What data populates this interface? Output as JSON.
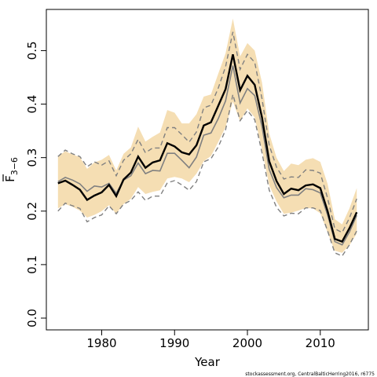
{
  "chart_data": {
    "type": "line",
    "xlabel": "Year",
    "ylabel_main": "F",
    "ylabel_sub": "3−6",
    "x_ticks": [
      1980,
      1990,
      2000,
      2010
    ],
    "y_ticks": [
      "0.0",
      "0.1",
      "0.2",
      "0.3",
      "0.4",
      "0.5"
    ],
    "y_tick_values": [
      0.0,
      0.1,
      0.2,
      0.3,
      0.4,
      0.5
    ],
    "xlim": [
      1972.4,
      2016.6
    ],
    "ylim": [
      -0.022,
      0.577
    ],
    "grid": false,
    "footer": "stockassessment.org, CentralBalticHerring2016, r6775",
    "colors": {
      "band": "#f5deb3",
      "estimate": "#000000",
      "comparison": "#808080"
    },
    "x": [
      1974,
      1975,
      1976,
      1977,
      1978,
      1979,
      1980,
      1981,
      1982,
      1983,
      1984,
      1985,
      1986,
      1987,
      1988,
      1989,
      1990,
      1991,
      1992,
      1993,
      1994,
      1995,
      1996,
      1997,
      1998,
      1999,
      2000,
      2001,
      2002,
      2003,
      2004,
      2005,
      2006,
      2007,
      2008,
      2009,
      2010,
      2011,
      2012,
      2013,
      2014,
      2015
    ],
    "series": [
      {
        "role": "band",
        "lower": [
          0.205,
          0.213,
          0.208,
          0.201,
          0.188,
          0.193,
          0.2,
          0.211,
          0.195,
          0.213,
          0.223,
          0.245,
          0.232,
          0.236,
          0.239,
          0.261,
          0.264,
          0.261,
          0.254,
          0.27,
          0.293,
          0.303,
          0.329,
          0.357,
          0.405,
          0.368,
          0.392,
          0.375,
          0.315,
          0.248,
          0.218,
          0.195,
          0.197,
          0.201,
          0.206,
          0.205,
          0.196,
          0.16,
          0.126,
          0.122,
          0.136,
          0.158
        ],
        "upper": [
          0.302,
          0.312,
          0.306,
          0.301,
          0.279,
          0.291,
          0.296,
          0.305,
          0.276,
          0.307,
          0.319,
          0.358,
          0.33,
          0.339,
          0.347,
          0.389,
          0.384,
          0.364,
          0.364,
          0.381,
          0.414,
          0.418,
          0.457,
          0.495,
          0.56,
          0.489,
          0.514,
          0.5,
          0.44,
          0.345,
          0.3,
          0.275,
          0.289,
          0.286,
          0.296,
          0.299,
          0.292,
          0.251,
          0.185,
          0.175,
          0.205,
          0.243
        ]
      },
      {
        "role": "estimate",
        "values": [
          0.252,
          0.257,
          0.249,
          0.24,
          0.221,
          0.229,
          0.235,
          0.249,
          0.228,
          0.259,
          0.272,
          0.302,
          0.281,
          0.291,
          0.295,
          0.327,
          0.321,
          0.31,
          0.306,
          0.323,
          0.36,
          0.366,
          0.397,
          0.428,
          0.493,
          0.426,
          0.453,
          0.436,
          0.375,
          0.293,
          0.256,
          0.232,
          0.242,
          0.239,
          0.248,
          0.25,
          0.243,
          0.2,
          0.148,
          0.143,
          0.168,
          0.198
        ]
      },
      {
        "role": "comparison",
        "values": [
          0.255,
          0.263,
          0.258,
          0.251,
          0.237,
          0.247,
          0.245,
          0.252,
          0.233,
          0.258,
          0.266,
          0.29,
          0.27,
          0.276,
          0.275,
          0.308,
          0.308,
          0.295,
          0.281,
          0.301,
          0.342,
          0.346,
          0.373,
          0.406,
          0.472,
          0.402,
          0.429,
          0.416,
          0.358,
          0.278,
          0.244,
          0.225,
          0.23,
          0.23,
          0.242,
          0.24,
          0.234,
          0.193,
          0.143,
          0.137,
          0.161,
          0.192
        ]
      },
      {
        "role": "comparison_upper",
        "values": [
          0.302,
          0.314,
          0.307,
          0.302,
          0.283,
          0.292,
          0.286,
          0.294,
          0.266,
          0.295,
          0.307,
          0.334,
          0.309,
          0.318,
          0.318,
          0.356,
          0.356,
          0.343,
          0.329,
          0.348,
          0.393,
          0.398,
          0.43,
          0.47,
          0.535,
          0.465,
          0.493,
          0.478,
          0.41,
          0.323,
          0.282,
          0.26,
          0.264,
          0.263,
          0.277,
          0.276,
          0.271,
          0.224,
          0.167,
          0.16,
          0.187,
          0.223
        ]
      },
      {
        "role": "comparison_lower",
        "values": [
          0.2,
          0.215,
          0.21,
          0.205,
          0.18,
          0.188,
          0.193,
          0.21,
          0.195,
          0.213,
          0.22,
          0.236,
          0.22,
          0.228,
          0.228,
          0.253,
          0.257,
          0.249,
          0.239,
          0.255,
          0.292,
          0.298,
          0.32,
          0.352,
          0.418,
          0.369,
          0.388,
          0.371,
          0.309,
          0.239,
          0.207,
          0.191,
          0.196,
          0.195,
          0.206,
          0.206,
          0.201,
          0.163,
          0.122,
          0.116,
          0.137,
          0.163
        ]
      }
    ]
  }
}
